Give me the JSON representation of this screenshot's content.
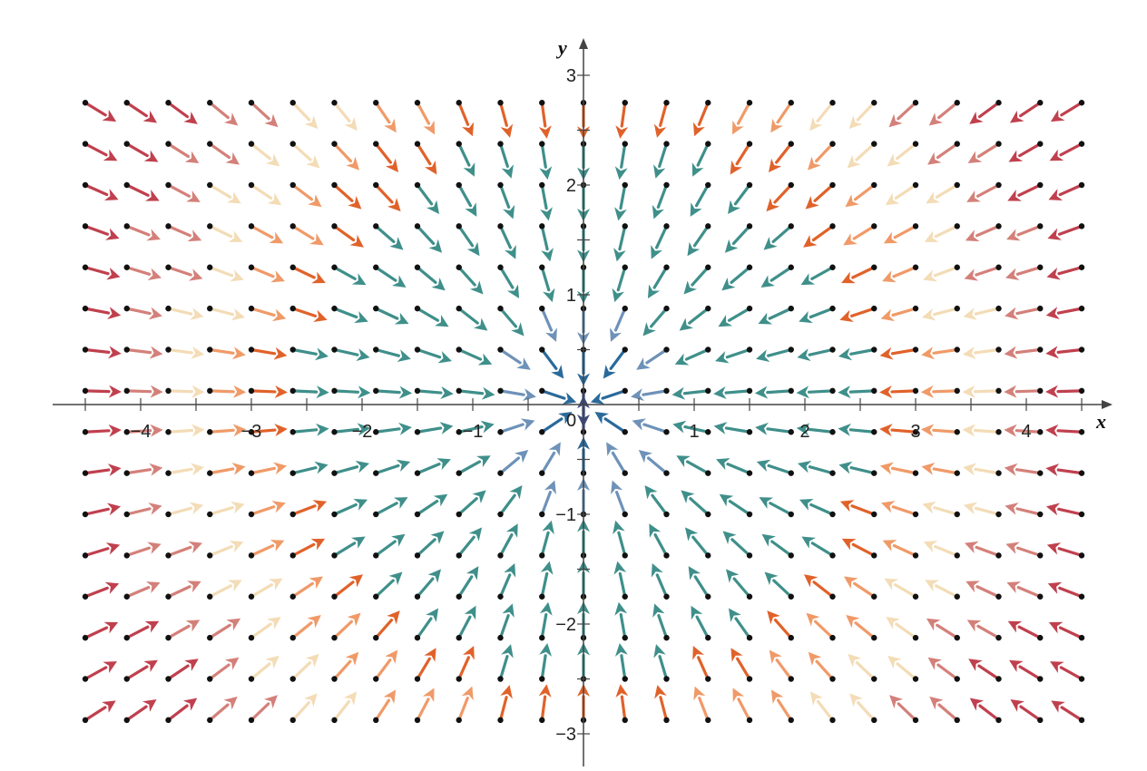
{
  "chart_data": {
    "type": "vector_field",
    "title": "",
    "xlabel": "x",
    "ylabel": "y",
    "xlim": [
      -4.55,
      4.55
    ],
    "ylim": [
      -3.1,
      3.1
    ],
    "x_ticks": [
      -4,
      -3,
      -2,
      -1,
      1,
      2,
      3,
      4
    ],
    "y_ticks": [
      -3,
      -2,
      -1,
      1,
      2,
      3
    ],
    "origin_label": "0",
    "grid": false,
    "field": {
      "x_start": -4.5,
      "x_step": 0.375,
      "nx": 25,
      "y_start": -2.875,
      "y_step": 0.375,
      "ny": 16,
      "vector_direction": "toward origin (-x, -y)"
    },
    "colors": [
      "#3d4a7c",
      "#2a6a9a",
      "#6e92b8",
      "#3f8f8a",
      "#e0622a",
      "#f09a68",
      "#f3dcb6",
      "#d4807a",
      "#c0404e"
    ],
    "point_color": "#111111",
    "axis_color": "#444444"
  }
}
